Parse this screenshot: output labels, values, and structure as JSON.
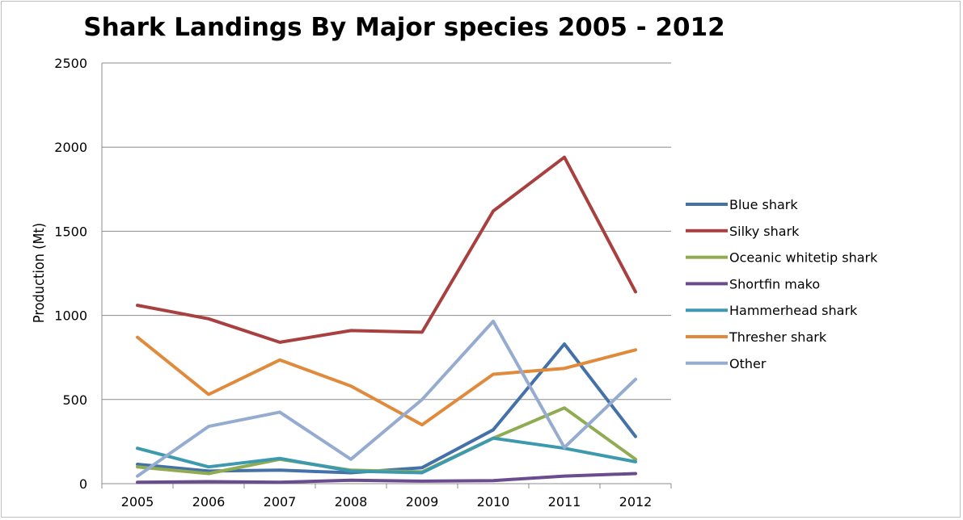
{
  "chart_data": {
    "type": "line",
    "title": "Shark Landings By Major species 2005 - 2012",
    "xlabel": "",
    "ylabel": "Production (Mt)",
    "x": [
      "2005",
      "2006",
      "2007",
      "2008",
      "2009",
      "2010",
      "2011",
      "2012"
    ],
    "ylim": [
      0,
      2500
    ],
    "yticks": [
      "0",
      "500",
      "1000",
      "1500",
      "2000",
      "2500"
    ],
    "grid": true,
    "legend_position": "right",
    "series": [
      {
        "name": "Blue shark",
        "color": "#4472a8",
        "values": [
          115,
          75,
          80,
          65,
          95,
          320,
          830,
          280
        ]
      },
      {
        "name": "Silky shark",
        "color": "#a84040",
        "values": [
          1060,
          980,
          840,
          910,
          900,
          1620,
          1940,
          1140
        ]
      },
      {
        "name": "Oceanic whitetip shark",
        "color": "#8fac52",
        "values": [
          100,
          60,
          145,
          80,
          70,
          270,
          450,
          145
        ]
      },
      {
        "name": "Shortfin mako",
        "color": "#6b4c8f",
        "values": [
          8,
          12,
          8,
          20,
          15,
          18,
          45,
          60
        ]
      },
      {
        "name": "Hammerhead shark",
        "color": "#3d9aae",
        "values": [
          210,
          100,
          150,
          75,
          65,
          270,
          210,
          130
        ]
      },
      {
        "name": "Thresher shark",
        "color": "#e08a3c",
        "values": [
          870,
          530,
          735,
          580,
          350,
          650,
          685,
          795
        ]
      },
      {
        "name": "Other",
        "color": "#95abd0",
        "values": [
          45,
          340,
          425,
          145,
          500,
          965,
          215,
          620
        ]
      }
    ]
  }
}
